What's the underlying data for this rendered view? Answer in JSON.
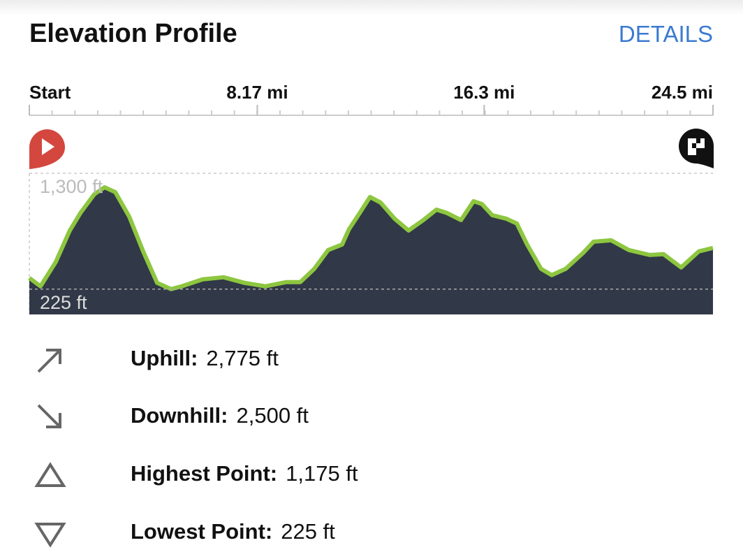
{
  "header": {
    "title": "Elevation Profile",
    "action": "DETAILS"
  },
  "chart_data": {
    "type": "area",
    "x": [
      0,
      0.4,
      0.95,
      1.45,
      1.83,
      2.33,
      2.7,
      3.08,
      3.58,
      4.08,
      4.58,
      5.08,
      5.46,
      6.21,
      6.96,
      7.71,
      8.46,
      9.21,
      9.71,
      10.21,
      10.71,
      11.21,
      11.46,
      11.84,
      12.21,
      12.59,
      13.09,
      13.59,
      14.09,
      14.59,
      14.97,
      15.47,
      15.92,
      16.22,
      16.59,
      17.09,
      17.47,
      17.84,
      18.34,
      18.72,
      19.22,
      19.85,
      20.22,
      20.85,
      21.48,
      22.23,
      22.73,
      23.36,
      23.99,
      24.5
    ],
    "values": [
      329,
      251,
      478,
      769,
      931,
      1106,
      1170,
      1125,
      898,
      575,
      283,
      225,
      251,
      316,
      335,
      283,
      251,
      290,
      290,
      413,
      588,
      639,
      782,
      931,
      1080,
      1028,
      879,
      769,
      860,
      963,
      931,
      866,
      1041,
      1015,
      911,
      879,
      834,
      639,
      413,
      355,
      413,
      562,
      665,
      678,
      588,
      542,
      549,
      426,
      575,
      607
    ],
    "xlim": [
      0,
      24.5
    ],
    "xticks": [
      {
        "value": 0,
        "label": "Start"
      },
      {
        "value": 8.17,
        "label": "8.17 mi"
      },
      {
        "value": 16.3,
        "label": "16.3 mi"
      },
      {
        "value": 24.5,
        "label": "24.5 mi"
      }
    ],
    "ylim": [
      -10,
      1300
    ],
    "yticks": [
      {
        "value": 1300,
        "label": "1,300 ft"
      },
      {
        "value": 225,
        "label": "225 ft"
      }
    ],
    "color": "#313847",
    "line_color": "#8dc63f",
    "grid": true
  },
  "stats": [
    {
      "label": "Uphill:",
      "value": "2,775 ft"
    },
    {
      "label": "Downhill:",
      "value": "2,500 ft"
    },
    {
      "label": "Highest Point:",
      "value": "1,175 ft"
    },
    {
      "label": "Lowest Point:",
      "value": "225 ft"
    }
  ]
}
